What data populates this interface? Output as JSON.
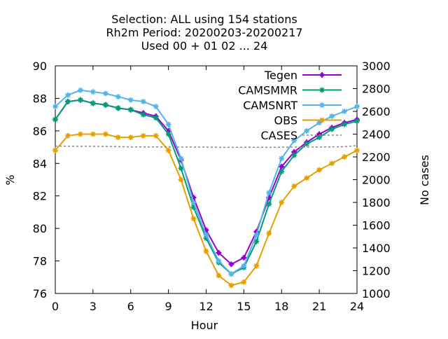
{
  "chart_data": {
    "type": "line",
    "title_lines": [
      "Selection: ALL using   154 stations",
      "Rh2m   Period: 20200203-20200217",
      "Used  00 + 01 02 ... 24"
    ],
    "xlabel": "Hour",
    "ylabel": "%",
    "y2label": "No cases",
    "xlim": [
      0,
      24
    ],
    "ylim": [
      76,
      90
    ],
    "y2lim": [
      1000,
      3000
    ],
    "xticks": [
      0,
      3,
      6,
      9,
      12,
      15,
      18,
      21,
      24
    ],
    "yticks": [
      76,
      78,
      80,
      82,
      84,
      86,
      88,
      90
    ],
    "y2ticks": [
      1000,
      1200,
      1400,
      1600,
      1800,
      2000,
      2200,
      2400,
      2600,
      2800,
      3000
    ],
    "grid": false,
    "legend_position": "top-right",
    "x": [
      0,
      1,
      2,
      3,
      4,
      5,
      6,
      7,
      8,
      9,
      10,
      11,
      12,
      13,
      14,
      15,
      16,
      17,
      18,
      19,
      20,
      21,
      22,
      23,
      24
    ],
    "series": [
      {
        "name": "Tegen",
        "color": "#9400d3",
        "marker": "cross",
        "axis": "y",
        "values": [
          86.7,
          87.8,
          87.9,
          87.7,
          87.6,
          87.4,
          87.3,
          87.1,
          86.9,
          86.0,
          84.2,
          81.9,
          79.9,
          78.5,
          77.8,
          78.2,
          79.8,
          81.9,
          83.8,
          84.7,
          85.3,
          85.8,
          86.2,
          86.5,
          86.7
        ]
      },
      {
        "name": "CAMSMMR",
        "color": "#009e73",
        "marker": "star",
        "axis": "y",
        "values": [
          86.7,
          87.8,
          87.9,
          87.7,
          87.6,
          87.4,
          87.3,
          87.0,
          86.8,
          85.8,
          83.7,
          81.3,
          79.4,
          77.9,
          77.2,
          77.6,
          79.2,
          81.5,
          83.5,
          84.5,
          85.2,
          85.6,
          86.1,
          86.4,
          86.6
        ]
      },
      {
        "name": "CAMSNRT",
        "color": "#56b4e9",
        "marker": "star",
        "axis": "y",
        "values": [
          87.5,
          88.2,
          88.5,
          88.4,
          88.3,
          88.1,
          87.9,
          87.8,
          87.5,
          86.4,
          84.3,
          81.6,
          79.6,
          78.0,
          77.2,
          77.7,
          79.6,
          82.2,
          84.3,
          85.4,
          86.0,
          86.5,
          86.9,
          87.2,
          87.5
        ]
      },
      {
        "name": "OBS",
        "color": "#e69f00",
        "marker": "star",
        "axis": "y",
        "values": [
          84.8,
          85.7,
          85.8,
          85.8,
          85.8,
          85.6,
          85.6,
          85.7,
          85.7,
          84.8,
          83.0,
          80.6,
          78.6,
          77.1,
          76.5,
          76.7,
          77.7,
          79.7,
          81.6,
          82.6,
          83.1,
          83.6,
          84.0,
          84.4,
          84.8
        ]
      },
      {
        "name": "CASES",
        "color": "#888888",
        "marker": "none",
        "dashed": true,
        "axis": "y2",
        "values": [
          2295,
          2294,
          2293,
          2293,
          2292,
          2290,
          2288,
          2288,
          2288,
          2288,
          2286,
          2286,
          2286,
          2284,
          2284,
          2285,
          2285,
          2284,
          2285,
          2286,
          2286,
          2287,
          2288,
          2290,
          2300
        ]
      }
    ]
  }
}
